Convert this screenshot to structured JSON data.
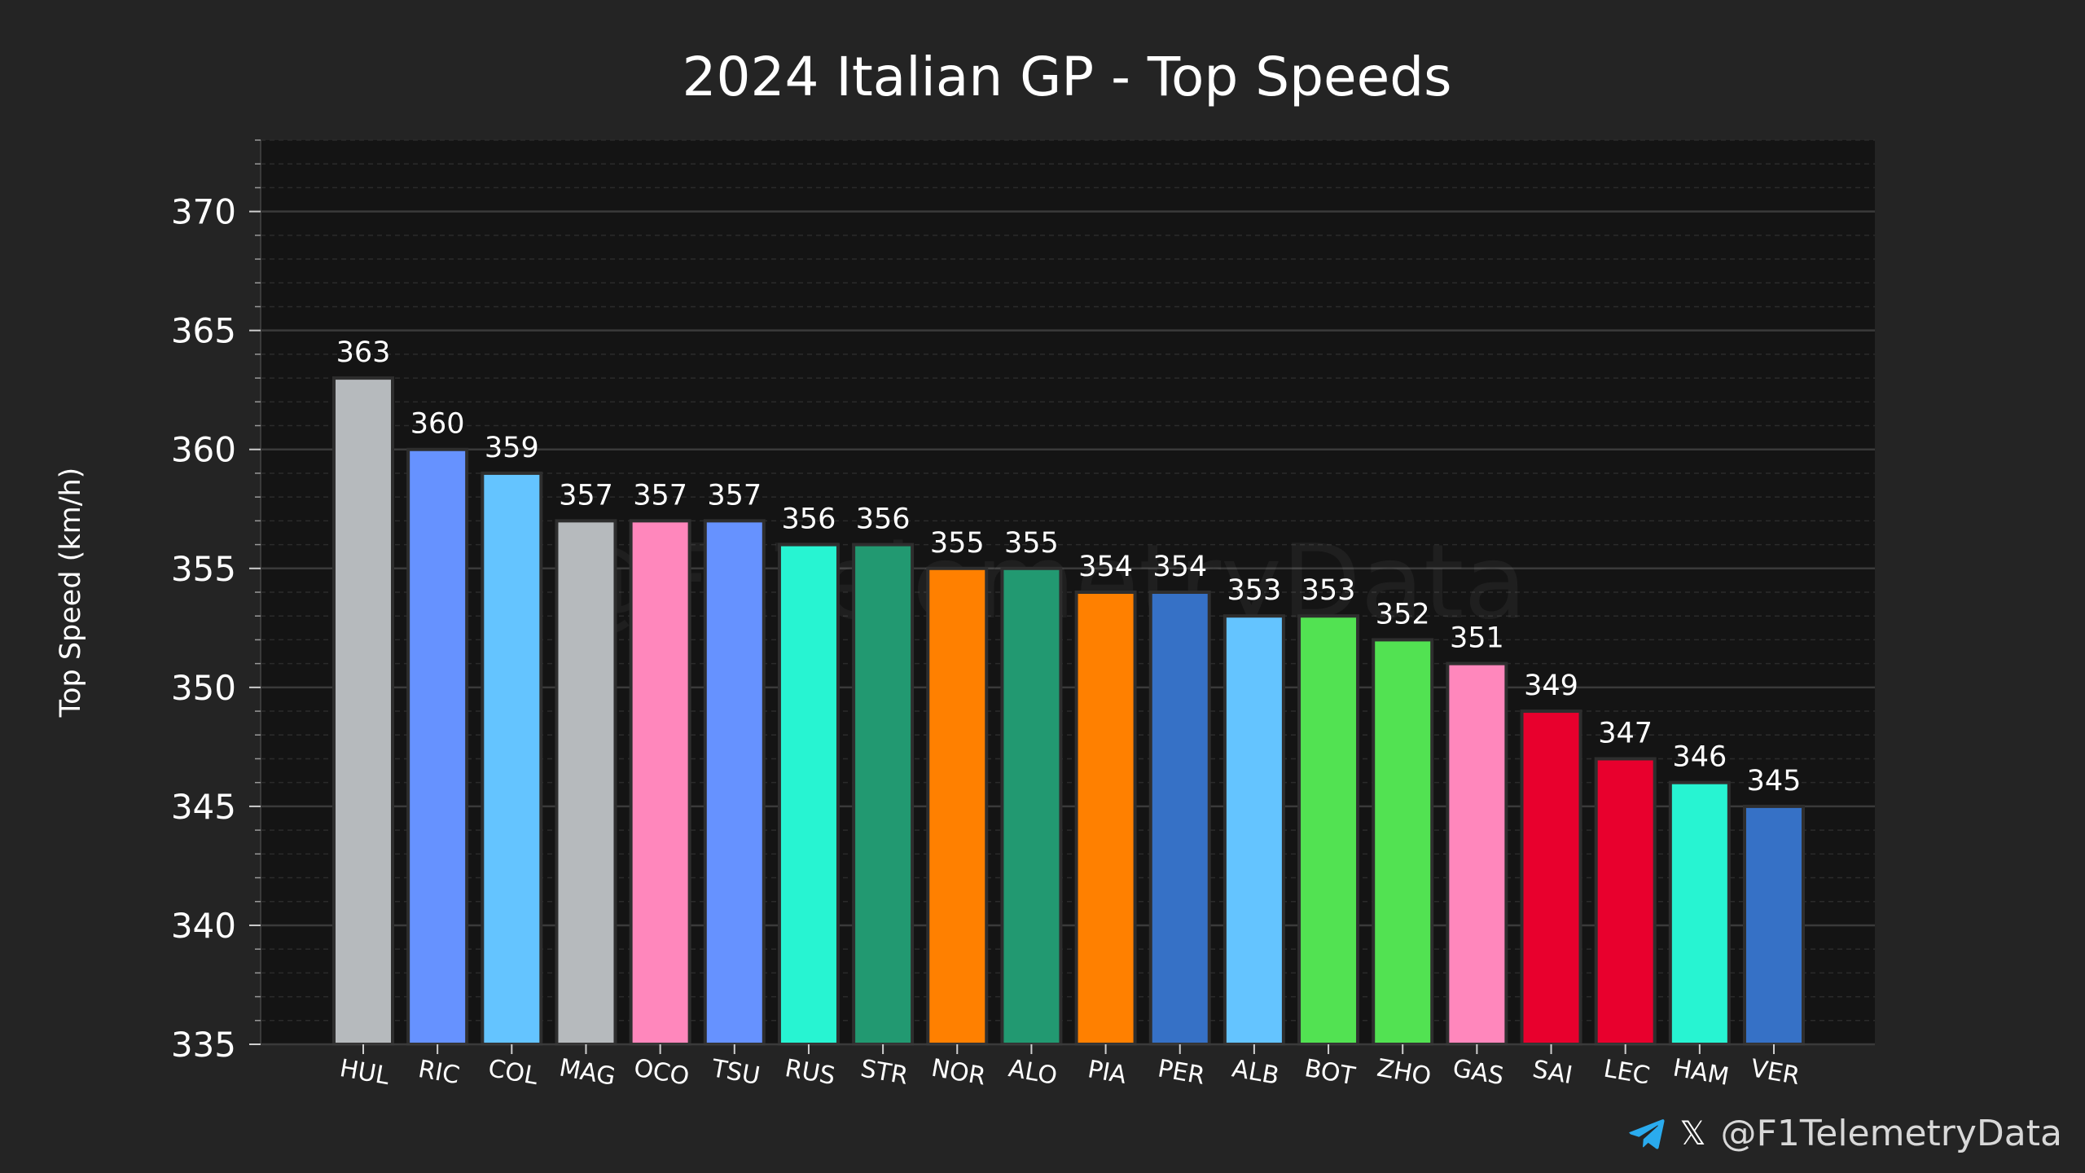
{
  "chart_data": {
    "type": "bar",
    "title": "2024 Italian GP - Top Speeds",
    "xlabel": "",
    "ylabel": "Top Speed (km/h)",
    "ylim": [
      335,
      373
    ],
    "yticks": [
      335,
      340,
      345,
      350,
      355,
      360,
      365,
      370
    ],
    "minor_tick_step": 1,
    "grid": true,
    "categories": [
      "HUL",
      "RIC",
      "COL",
      "MAG",
      "OCO",
      "TSU",
      "RUS",
      "STR",
      "NOR",
      "ALO",
      "PIA",
      "PER",
      "ALB",
      "BOT",
      "ZHO",
      "GAS",
      "SAI",
      "LEC",
      "HAM",
      "VER"
    ],
    "values": [
      363,
      360,
      359,
      357,
      357,
      357,
      356,
      356,
      355,
      355,
      354,
      354,
      353,
      353,
      352,
      351,
      349,
      347,
      346,
      345
    ],
    "colors": [
      "#B6BABD",
      "#6692FF",
      "#64C4FF",
      "#B6BABD",
      "#FF87BC",
      "#6692FF",
      "#27F4D2",
      "#229971",
      "#FF8000",
      "#229971",
      "#FF8000",
      "#3671C6",
      "#64C4FF",
      "#52E252",
      "#52E252",
      "#FF87BC",
      "#E8002D",
      "#E8002D",
      "#27F4D2",
      "#3671C6"
    ]
  },
  "watermark": "@F1TelemetryData",
  "credit": {
    "handle": "@F1TelemetryData",
    "icons": [
      "telegram-icon",
      "x-icon"
    ],
    "telegram_color": "#2AABEE"
  },
  "theme": {
    "page_bg": "#242424",
    "plot_bg": "#141414",
    "grid_major": "#3a3a3a",
    "grid_minor": "#2b2b2b",
    "text": "#ffffff"
  }
}
